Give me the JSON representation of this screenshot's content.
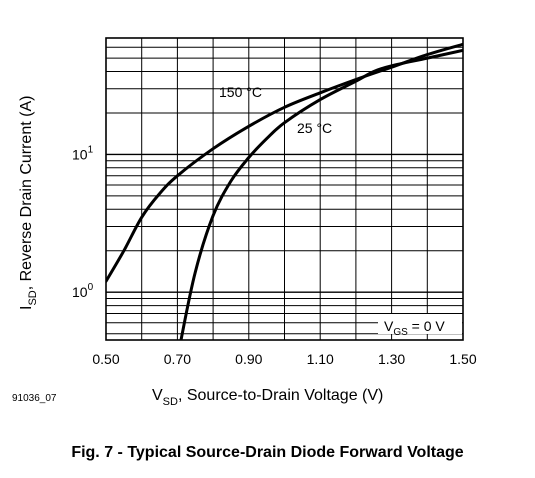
{
  "figure_id": "91036_07",
  "caption": "Fig. 7 - Typical Source-Drain Diode Forward Voltage",
  "chart_data": {
    "type": "line",
    "title": "",
    "xlabel": {
      "main": "V",
      "sub": "SD",
      "rest": ", Source-to-Drain Voltage (V)"
    },
    "ylabel": {
      "main": "I",
      "sub": "SD",
      "rest": ", Reverse Drain Current (A)"
    },
    "xlim": [
      0.5,
      1.5
    ],
    "ylim": [
      0.45,
      70
    ],
    "yscale": "log",
    "grid": true,
    "x_ticks": [
      0.5,
      0.7,
      0.9,
      1.1,
      1.3,
      1.5
    ],
    "x_tick_labels": [
      "0.50",
      "0.70",
      "0.90",
      "1.10",
      "1.30",
      "1.50"
    ],
    "y_ticks": [
      {
        "value": 1,
        "base": "10",
        "exp": "0"
      },
      {
        "value": 10,
        "base": "10",
        "exp": "1"
      }
    ],
    "annotation": {
      "main": "V",
      "sub": "GS",
      "rest": " = 0 V"
    },
    "series": [
      {
        "name": "150 °C",
        "x": [
          0.5,
          0.55,
          0.6,
          0.65,
          0.7,
          0.8,
          0.9,
          1.0,
          1.1,
          1.2,
          1.3,
          1.4,
          1.5
        ],
        "y": [
          1.2,
          2.0,
          3.5,
          5.2,
          7.0,
          11.0,
          16.0,
          22.0,
          28.0,
          35.0,
          43.0,
          53.0,
          63.0
        ]
      },
      {
        "name": "25 °C",
        "x": [
          0.71,
          0.75,
          0.8,
          0.85,
          0.9,
          0.95,
          1.0,
          1.1,
          1.2,
          1.25,
          1.3,
          1.4,
          1.5
        ],
        "y": [
          0.45,
          1.4,
          3.6,
          6.4,
          9.5,
          13.0,
          17.0,
          25.0,
          34.0,
          40.0,
          44.0,
          50.0,
          57.0
        ]
      }
    ]
  }
}
